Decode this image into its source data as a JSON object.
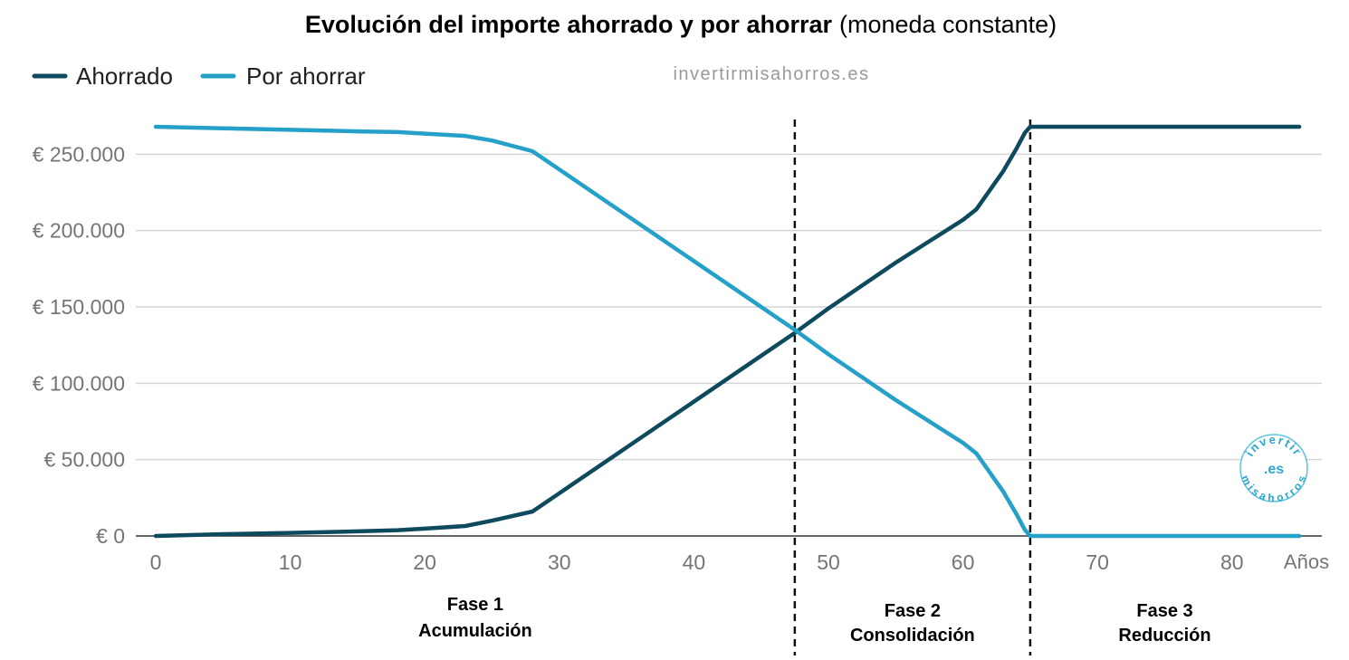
{
  "chart_data": {
    "type": "line",
    "title_bold": "Evolución del importe ahorrado y por ahorrar",
    "title_rest": "(moneda constante)",
    "watermark": "invertirmisahorros.es",
    "logo": {
      "top": "invertir",
      "middle": ".es",
      "bottom": "misahorros"
    },
    "xlabel": "Años",
    "ylabel": "",
    "xlim": [
      0,
      85
    ],
    "ylim": [
      0,
      268000
    ],
    "x_ticks": [
      0,
      10,
      20,
      30,
      40,
      50,
      60,
      70,
      80
    ],
    "y_ticks": [
      0,
      50000,
      100000,
      150000,
      200000,
      250000
    ],
    "y_tick_labels": [
      "€ 0",
      "€ 50.000",
      "€ 100.000",
      "€ 150.000",
      "€ 200.000",
      "€ 250.000"
    ],
    "grid": true,
    "legend_position": "top-left",
    "series": [
      {
        "name": "Ahorrado",
        "color": "#0e4a5e",
        "points": [
          [
            0,
            0
          ],
          [
            5,
            1200
          ],
          [
            10,
            2000
          ],
          [
            15,
            3000
          ],
          [
            18,
            3800
          ],
          [
            20,
            4800
          ],
          [
            23,
            6500
          ],
          [
            25,
            10000
          ],
          [
            28,
            16000
          ],
          [
            30,
            28000
          ],
          [
            35,
            58000
          ],
          [
            40,
            88000
          ],
          [
            45,
            118000
          ],
          [
            47.5,
            133000
          ],
          [
            50,
            149000
          ],
          [
            55,
            179000
          ],
          [
            60,
            207000
          ],
          [
            61,
            214000
          ],
          [
            63,
            239000
          ],
          [
            64,
            254000
          ],
          [
            64.6,
            264000
          ],
          [
            65,
            268000
          ],
          [
            70,
            268000
          ],
          [
            75,
            268000
          ],
          [
            80,
            268000
          ],
          [
            85,
            268000
          ]
        ]
      },
      {
        "name": "Por ahorrar",
        "color": "#25a0c8",
        "points": [
          [
            0,
            268000
          ],
          [
            5,
            267000
          ],
          [
            10,
            266000
          ],
          [
            15,
            265000
          ],
          [
            18,
            264500
          ],
          [
            20,
            263500
          ],
          [
            23,
            262000
          ],
          [
            25,
            259000
          ],
          [
            28,
            252000
          ],
          [
            30,
            240000
          ],
          [
            35,
            210000
          ],
          [
            40,
            180000
          ],
          [
            45,
            150000
          ],
          [
            47.5,
            135000
          ],
          [
            50,
            119000
          ],
          [
            55,
            89000
          ],
          [
            60,
            61000
          ],
          [
            61,
            54000
          ],
          [
            63,
            29000
          ],
          [
            64,
            14000
          ],
          [
            64.6,
            4000
          ],
          [
            65,
            0
          ],
          [
            70,
            0
          ],
          [
            75,
            0
          ],
          [
            80,
            0
          ],
          [
            85,
            0
          ]
        ]
      }
    ],
    "phase_dividers": [
      47.5,
      65
    ],
    "phases": [
      {
        "line1": "Fase 1",
        "line2": "Acumulación"
      },
      {
        "line1": "Fase 2",
        "line2": "Consolidación"
      },
      {
        "line1": "Fase 3",
        "line2": "Reducción"
      }
    ]
  }
}
